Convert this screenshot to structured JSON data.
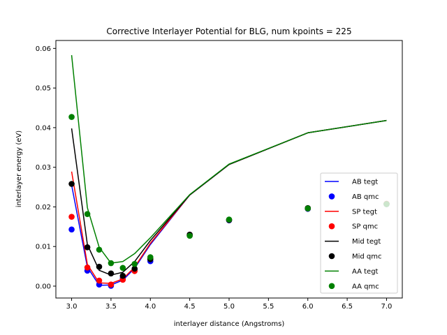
{
  "chart_data": {
    "type": "line",
    "title": "Corrective Interlayer Potential for BLG, num kpoints = 225",
    "xlabel": "interlayer distance (Angstroms)",
    "ylabel": "interlayer energy (eV)",
    "xlim": [
      2.8,
      7.2
    ],
    "ylim": [
      -0.003,
      0.062
    ],
    "xticks": [
      "3.0",
      "3.5",
      "4.0",
      "4.5",
      "5.0",
      "5.5",
      "6.0",
      "6.5",
      "7.0"
    ],
    "yticks": [
      "0.00",
      "0.01",
      "0.02",
      "0.03",
      "0.04",
      "0.05",
      "0.06"
    ],
    "legend_position": "lower right",
    "grid": false,
    "series": [
      {
        "name": "AB tegt",
        "kind": "line",
        "color": "#0000ff",
        "x": [
          3.0,
          3.2,
          3.35,
          3.5,
          3.65,
          3.8,
          4.0,
          4.5,
          5.0,
          6.0,
          7.0
        ],
        "y": [
          0.0255,
          0.0048,
          0.0002,
          0.0003,
          0.0015,
          0.0045,
          0.0105,
          0.023,
          0.0307,
          0.0387,
          0.0418
        ]
      },
      {
        "name": "AB qmc",
        "kind": "scatter",
        "color": "#0000ff",
        "x": [
          3.0,
          3.2,
          3.35,
          3.5,
          3.65,
          3.8,
          4.0,
          4.5,
          5.0,
          6.0,
          7.0
        ],
        "y": [
          0.0143,
          0.0039,
          0.0004,
          0.0001,
          0.002,
          0.0041,
          0.0063,
          0.0128,
          0.0166,
          0.0195,
          0.0207
        ]
      },
      {
        "name": "SP tegt",
        "kind": "line",
        "color": "#ff0000",
        "x": [
          3.0,
          3.2,
          3.35,
          3.5,
          3.65,
          3.8,
          4.0,
          4.5,
          5.0,
          6.0,
          7.0
        ],
        "y": [
          0.0289,
          0.0055,
          0.0008,
          0.0007,
          0.0018,
          0.0048,
          0.0108,
          0.023,
          0.0307,
          0.0387,
          0.0418
        ]
      },
      {
        "name": "SP qmc",
        "kind": "scatter",
        "color": "#ff0000",
        "x": [
          3.0,
          3.2,
          3.35,
          3.5,
          3.65,
          3.8,
          4.0,
          4.5,
          5.0,
          6.0,
          7.0
        ],
        "y": [
          0.0175,
          0.0047,
          0.0014,
          0.0004,
          0.0016,
          0.0038,
          0.0069,
          0.0128,
          0.0167,
          0.0196,
          0.0208
        ]
      },
      {
        "name": "Mid tegt",
        "kind": "line",
        "color": "#000000",
        "x": [
          3.0,
          3.2,
          3.35,
          3.5,
          3.65,
          3.8,
          4.0,
          4.5,
          5.0,
          6.0,
          7.0
        ],
        "y": [
          0.0398,
          0.0105,
          0.004,
          0.0028,
          0.0035,
          0.0062,
          0.0115,
          0.023,
          0.0307,
          0.0387,
          0.0418
        ]
      },
      {
        "name": "Mid qmc",
        "kind": "scatter",
        "color": "#000000",
        "x": [
          3.0,
          3.2,
          3.35,
          3.5,
          3.65,
          3.8,
          4.0,
          4.5,
          5.0,
          6.0,
          7.0
        ],
        "y": [
          0.0258,
          0.0098,
          0.0049,
          0.0032,
          0.0026,
          0.0044,
          0.0068,
          0.013,
          0.0167,
          0.0197,
          0.0207
        ]
      },
      {
        "name": "AA tegt",
        "kind": "line",
        "color": "#008000",
        "x": [
          3.0,
          3.2,
          3.35,
          3.5,
          3.65,
          3.8,
          4.0,
          4.5,
          5.0,
          6.0,
          7.0
        ],
        "y": [
          0.0583,
          0.0198,
          0.0098,
          0.0058,
          0.0062,
          0.0082,
          0.0122,
          0.0231,
          0.0308,
          0.0387,
          0.0418
        ]
      },
      {
        "name": "AA qmc",
        "kind": "scatter",
        "color": "#008000",
        "x": [
          3.0,
          3.2,
          3.35,
          3.5,
          3.65,
          3.8,
          4.0,
          4.5,
          5.0,
          6.0,
          7.0
        ],
        "y": [
          0.0427,
          0.0182,
          0.0092,
          0.0058,
          0.0046,
          0.0056,
          0.0073,
          0.0127,
          0.0168,
          0.0196,
          0.0207
        ]
      }
    ]
  }
}
